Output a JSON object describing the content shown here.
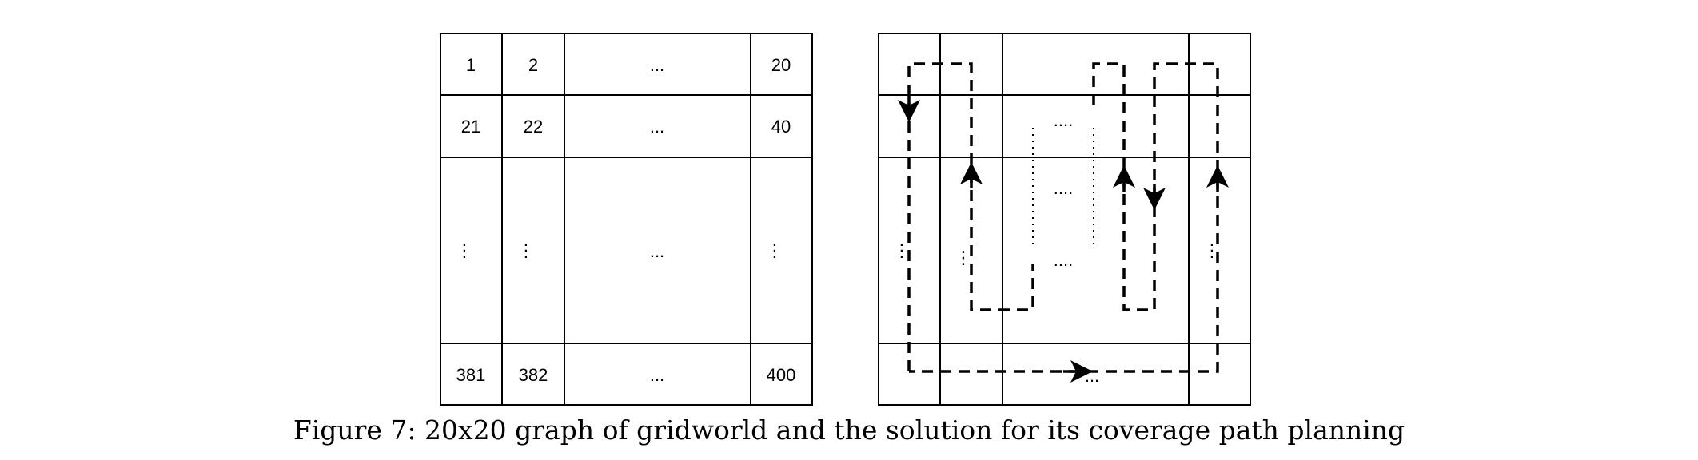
{
  "left_grid": {
    "rows": [
      [
        "1",
        "2",
        "...",
        "20"
      ],
      [
        "21",
        "22",
        "...",
        "40"
      ],
      [
        "⋮",
        "⋮",
        "...",
        "⋮"
      ],
      [
        "381",
        "382",
        "...",
        "400"
      ]
    ]
  },
  "right_grid": {
    "ellipsis_h": "....",
    "ellipsis_v": "⋮",
    "ellipsis_bottom": "..."
  },
  "caption": "Figure 7: 20x20 graph of gridworld and the solution for its coverage path planning"
}
